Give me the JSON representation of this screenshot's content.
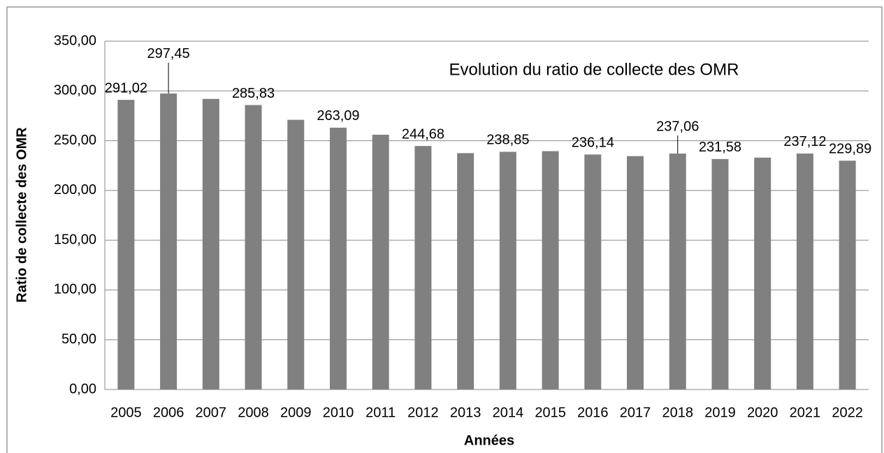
{
  "chart_data": {
    "type": "bar",
    "title": "Evolution du ratio de collecte des OMR",
    "x_label": "Années",
    "y_label": "Ratio de collecte des OMR",
    "categories": [
      "2005",
      "2006",
      "2007",
      "2008",
      "2009",
      "2010",
      "2011",
      "2012",
      "2013",
      "2014",
      "2015",
      "2016",
      "2017",
      "2018",
      "2019",
      "2020",
      "2021",
      "2022"
    ],
    "values": [
      291.02,
      297.45,
      292,
      285.83,
      271,
      263.09,
      256,
      244.68,
      237.5,
      238.85,
      239.5,
      236.14,
      234.5,
      237.06,
      231.58,
      233,
      237.12,
      229.89
    ],
    "value_labels": [
      "291,02",
      "297,45",
      null,
      "285,83",
      null,
      "263,09",
      null,
      "244,68",
      null,
      "238,85",
      null,
      "236,14",
      null,
      "237,06",
      "231,58",
      null,
      "237,12",
      "229,89"
    ],
    "color": "#808080",
    "ylim": [
      0,
      350
    ],
    "yticks": [
      {
        "value": 0,
        "label": "0,00"
      },
      {
        "value": 50,
        "label": "50,00"
      },
      {
        "value": 100,
        "label": "100,00"
      },
      {
        "value": 150,
        "label": "150,00"
      },
      {
        "value": 200,
        "label": "200,00"
      },
      {
        "value": 250,
        "label": "250,00"
      },
      {
        "value": 300,
        "label": "300,00"
      },
      {
        "value": 350,
        "label": "350,00"
      }
    ],
    "grid": true
  }
}
